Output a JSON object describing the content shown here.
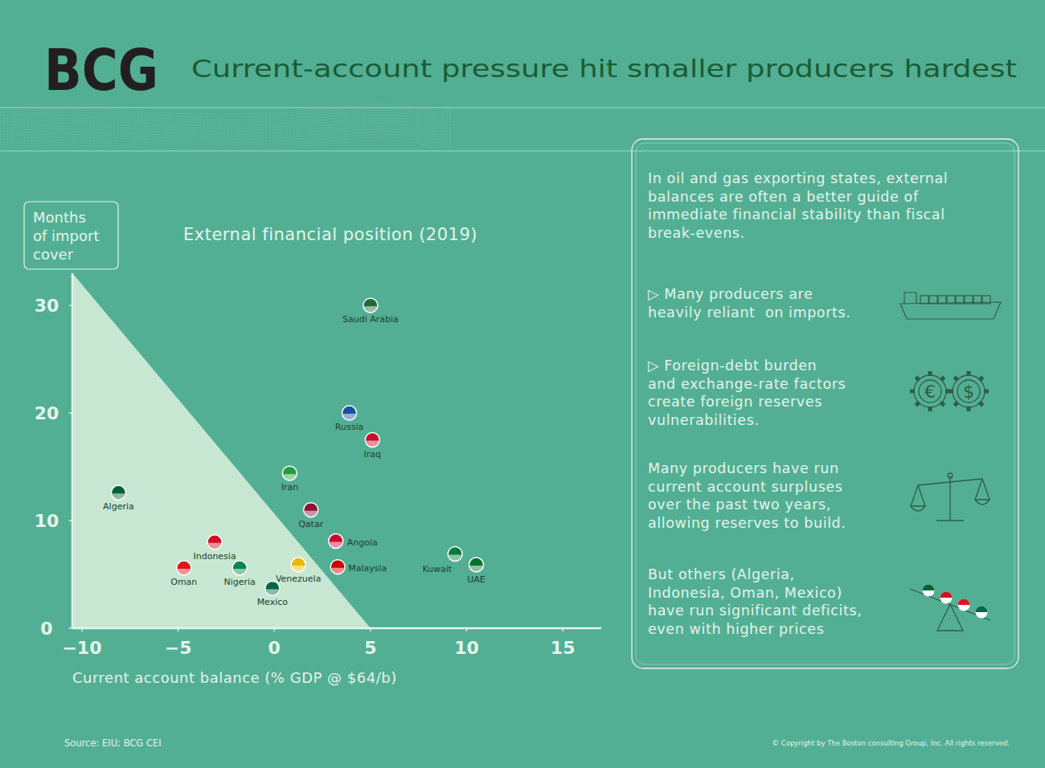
{
  "header": {
    "logo": "BCG",
    "title": "Current-account pressure hit smaller producers hardest"
  },
  "chart_data": {
    "type": "scatter",
    "title": "External financial position (2019)",
    "ylabel": [
      "Months",
      "of import",
      "cover"
    ],
    "xlabel": "Current account balance (% GDP @ $64/b)",
    "labels": [
      "Saudi Arabia",
      "Russia",
      "Iraq",
      "Iran",
      "Algeria",
      "Qatar",
      "Indonesia",
      "Angola",
      "Oman",
      "Nigeria",
      "Venezuela",
      "Malaysia",
      "Mexico",
      "Kuwait",
      "UAE"
    ],
    "x": [
      5.0,
      3.9,
      5.1,
      0.8,
      -8.1,
      1.9,
      -3.1,
      3.2,
      -4.7,
      -1.8,
      1.25,
      3.3,
      -0.1,
      9.4,
      10.5
    ],
    "values": [
      30.0,
      20.0,
      17.5,
      14.4,
      12.6,
      11.0,
      8.0,
      8.1,
      5.6,
      5.6,
      5.9,
      5.7,
      3.7,
      6.9,
      5.9
    ],
    "colors": [
      "#1e6b35",
      "#1c4fa0",
      "#c8102e",
      "#239f40",
      "#006233",
      "#8a1538",
      "#ce1126",
      "#cc092f",
      "#db161b",
      "#008751",
      "#e8b800",
      "#cc0001",
      "#006847",
      "#007a3d",
      "#00732f"
    ],
    "xlim": [
      -10.5,
      17
    ],
    "xticks": [
      -10,
      -5,
      0,
      5,
      10,
      15
    ],
    "ylim": [
      0,
      33
    ],
    "yticks": [
      0,
      10,
      20,
      30
    ],
    "shaded_region": {
      "x": [
        -10.5,
        -10.5,
        5
      ],
      "y": [
        33,
        0,
        0
      ]
    },
    "grid": false
  },
  "panel": {
    "paragraphs": [
      [
        "In oil and gas exporting states, external",
        "balances are often a better guide of",
        "immediate financial stability than fiscal",
        "break-evens."
      ],
      [
        "▷ Many producers are",
        "heavily reliant  on imports."
      ],
      [
        "▷ Foreign-debt burden",
        "and exchange-rate factors",
        "create foreign reserves",
        "vulnerabilities."
      ],
      [
        "Many producers have run",
        "current account surpluses",
        "over the past two years,",
        "allowing reserves to build."
      ],
      [
        "But others (Algeria,",
        "Indonesia, Oman, Mexico)",
        "have run significant deficits,",
        "even with higher prices"
      ]
    ],
    "icon_labels": [
      "€",
      "$"
    ]
  },
  "footer": {
    "source": "Source: EIU; BCG CEI",
    "copyright": "© Copyright by The Boston consulting Group, Inc. All rights reserved."
  }
}
